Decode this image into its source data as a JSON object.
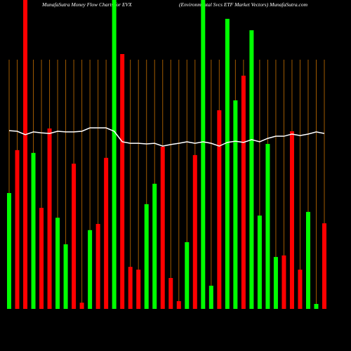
{
  "chart_data": {
    "type": "bar",
    "title": "MunafaSutra  Money Flow  Charts for EVX",
    "subtitle": "(Environmental Svcs ETF Market Vectors) MunafaSutra.com",
    "values": [
      37.5,
      51.4,
      100,
      50.5,
      32.7,
      58.4,
      29.5,
      20.9,
      47,
      2,
      25.5,
      27.5,
      48.9,
      100,
      82.5,
      13.6,
      12.7,
      33.9,
      40.5,
      52.5,
      10,
      2.5,
      21.6,
      49.8,
      100,
      7.5,
      64.3,
      93.9,
      67.5,
      75.5,
      90.2,
      30.2,
      53.4,
      16.8,
      17.3,
      57.5,
      12.7,
      31.4,
      1.6,
      27.7
    ],
    "colors": [
      "#00ff00",
      "#ff0000",
      "#ff0000",
      "#00ff00",
      "#ff0000",
      "#ff0000",
      "#00ff00",
      "#00ff00",
      "#ff0000",
      "#ff0000",
      "#00ff00",
      "#ff0000",
      "#ff0000",
      "#00ff00",
      "#ff0000",
      "#ff0000",
      "#ff0000",
      "#00ff00",
      "#00ff00",
      "#ff0000",
      "#ff0000",
      "#ff0000",
      "#00ff00",
      "#ff0000",
      "#00ff00",
      "#00ff00",
      "#ff0000",
      "#00ff00",
      "#00ff00",
      "#ff0000",
      "#00ff00",
      "#00ff00",
      "#00ff00",
      "#00ff00",
      "#ff0000",
      "#ff0000",
      "#ff0000",
      "#00ff00",
      "#00ff00",
      "#ff0000"
    ],
    "line_values": [
      57.7,
      57.5,
      56.4,
      57.3,
      57,
      56.8,
      57.5,
      57.3,
      57.3,
      57.5,
      58.6,
      58.6,
      58.6,
      57.5,
      54.1,
      53.6,
      53.6,
      53.4,
      53.6,
      52.7,
      53.2,
      53.6,
      54.1,
      53.6,
      54.1,
      53.6,
      52.7,
      53.9,
      54.3,
      53.9,
      54.8,
      54.1,
      55.2,
      55.9,
      55.9,
      56.6,
      56.1,
      56.6,
      57.3,
      56.8
    ],
    "line_color": "#ffffff",
    "grid_color": "#a05a00",
    "ylim": [
      0,
      100
    ],
    "grid": true
  }
}
